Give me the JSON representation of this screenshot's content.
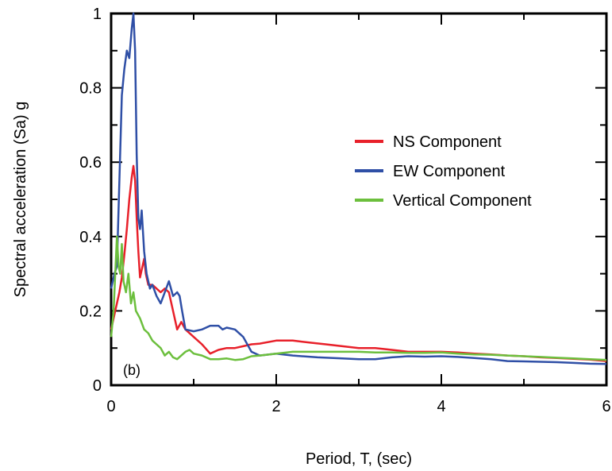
{
  "chart_data": {
    "type": "line",
    "title": "",
    "xlabel": "Period, T, (sec)",
    "ylabel": "Spectral acceleration (Sa) g",
    "xlim": [
      0,
      6
    ],
    "ylim": [
      0,
      1
    ],
    "x_ticks": [
      0,
      2,
      4,
      6
    ],
    "x_tick_labels": [
      "0",
      "2",
      "4",
      "6"
    ],
    "y_ticks": [
      0,
      0.2,
      0.4,
      0.6,
      0.8,
      1
    ],
    "y_tick_labels": [
      "0",
      "0.2",
      "0.4",
      "0.6",
      "0.8",
      "1"
    ],
    "grid": false,
    "legend_position": "right-middle",
    "annotation": "(b)",
    "series": [
      {
        "name": "NS Component",
        "color": "#e8202a",
        "points": [
          [
            0,
            0.15
          ],
          [
            0.05,
            0.2
          ],
          [
            0.08,
            0.23
          ],
          [
            0.1,
            0.25
          ],
          [
            0.13,
            0.29
          ],
          [
            0.16,
            0.35
          ],
          [
            0.19,
            0.42
          ],
          [
            0.22,
            0.5
          ],
          [
            0.25,
            0.56
          ],
          [
            0.27,
            0.59
          ],
          [
            0.29,
            0.55
          ],
          [
            0.31,
            0.45
          ],
          [
            0.33,
            0.36
          ],
          [
            0.35,
            0.29
          ],
          [
            0.37,
            0.31
          ],
          [
            0.4,
            0.34
          ],
          [
            0.42,
            0.3
          ],
          [
            0.45,
            0.27
          ],
          [
            0.5,
            0.27
          ],
          [
            0.55,
            0.26
          ],
          [
            0.6,
            0.25
          ],
          [
            0.65,
            0.26
          ],
          [
            0.7,
            0.25
          ],
          [
            0.75,
            0.2
          ],
          [
            0.8,
            0.15
          ],
          [
            0.85,
            0.17
          ],
          [
            0.9,
            0.15
          ],
          [
            1.0,
            0.13
          ],
          [
            1.1,
            0.11
          ],
          [
            1.2,
            0.085
          ],
          [
            1.3,
            0.095
          ],
          [
            1.4,
            0.1
          ],
          [
            1.5,
            0.1
          ],
          [
            1.6,
            0.105
          ],
          [
            1.7,
            0.11
          ],
          [
            1.8,
            0.112
          ],
          [
            2.0,
            0.12
          ],
          [
            2.2,
            0.12
          ],
          [
            2.4,
            0.115
          ],
          [
            2.6,
            0.11
          ],
          [
            2.8,
            0.105
          ],
          [
            3.0,
            0.1
          ],
          [
            3.2,
            0.1
          ],
          [
            3.4,
            0.095
          ],
          [
            3.6,
            0.09
          ],
          [
            3.8,
            0.09
          ],
          [
            4.0,
            0.09
          ],
          [
            4.2,
            0.088
          ],
          [
            4.4,
            0.085
          ],
          [
            4.6,
            0.083
          ],
          [
            4.8,
            0.08
          ],
          [
            5.0,
            0.078
          ],
          [
            5.2,
            0.075
          ],
          [
            5.4,
            0.073
          ],
          [
            5.6,
            0.071
          ],
          [
            5.8,
            0.069
          ],
          [
            6.0,
            0.065
          ]
        ]
      },
      {
        "name": "EW Component",
        "color": "#2f4fa6",
        "points": [
          [
            0,
            0.26
          ],
          [
            0.04,
            0.3
          ],
          [
            0.07,
            0.32
          ],
          [
            0.1,
            0.55
          ],
          [
            0.13,
            0.78
          ],
          [
            0.16,
            0.85
          ],
          [
            0.19,
            0.9
          ],
          [
            0.22,
            0.88
          ],
          [
            0.25,
            0.96
          ],
          [
            0.27,
            1.0
          ],
          [
            0.29,
            0.9
          ],
          [
            0.31,
            0.62
          ],
          [
            0.33,
            0.45
          ],
          [
            0.35,
            0.42
          ],
          [
            0.37,
            0.47
          ],
          [
            0.4,
            0.36
          ],
          [
            0.43,
            0.3
          ],
          [
            0.47,
            0.26
          ],
          [
            0.5,
            0.27
          ],
          [
            0.55,
            0.24
          ],
          [
            0.6,
            0.22
          ],
          [
            0.65,
            0.25
          ],
          [
            0.7,
            0.28
          ],
          [
            0.75,
            0.24
          ],
          [
            0.8,
            0.25
          ],
          [
            0.83,
            0.24
          ],
          [
            0.86,
            0.2
          ],
          [
            0.9,
            0.15
          ],
          [
            1.0,
            0.145
          ],
          [
            1.1,
            0.15
          ],
          [
            1.2,
            0.16
          ],
          [
            1.3,
            0.16
          ],
          [
            1.35,
            0.15
          ],
          [
            1.4,
            0.155
          ],
          [
            1.5,
            0.15
          ],
          [
            1.6,
            0.13
          ],
          [
            1.7,
            0.09
          ],
          [
            1.8,
            0.08
          ],
          [
            2.0,
            0.085
          ],
          [
            2.2,
            0.08
          ],
          [
            2.5,
            0.075
          ],
          [
            2.8,
            0.072
          ],
          [
            3.0,
            0.07
          ],
          [
            3.2,
            0.07
          ],
          [
            3.4,
            0.075
          ],
          [
            3.6,
            0.078
          ],
          [
            3.8,
            0.077
          ],
          [
            4.0,
            0.078
          ],
          [
            4.2,
            0.076
          ],
          [
            4.4,
            0.073
          ],
          [
            4.6,
            0.07
          ],
          [
            4.8,
            0.065
          ],
          [
            5.0,
            0.064
          ],
          [
            5.2,
            0.063
          ],
          [
            5.4,
            0.062
          ],
          [
            5.6,
            0.06
          ],
          [
            5.8,
            0.058
          ],
          [
            6.0,
            0.057
          ]
        ]
      },
      {
        "name": "Vertical Component",
        "color": "#6cbf3d",
        "points": [
          [
            0,
            0.13
          ],
          [
            0.03,
            0.2
          ],
          [
            0.05,
            0.3
          ],
          [
            0.07,
            0.4
          ],
          [
            0.09,
            0.32
          ],
          [
            0.11,
            0.3
          ],
          [
            0.13,
            0.38
          ],
          [
            0.15,
            0.28
          ],
          [
            0.18,
            0.25
          ],
          [
            0.21,
            0.3
          ],
          [
            0.24,
            0.22
          ],
          [
            0.27,
            0.25
          ],
          [
            0.3,
            0.2
          ],
          [
            0.35,
            0.18
          ],
          [
            0.4,
            0.15
          ],
          [
            0.45,
            0.14
          ],
          [
            0.5,
            0.12
          ],
          [
            0.55,
            0.11
          ],
          [
            0.6,
            0.1
          ],
          [
            0.65,
            0.08
          ],
          [
            0.7,
            0.09
          ],
          [
            0.75,
            0.075
          ],
          [
            0.8,
            0.07
          ],
          [
            0.85,
            0.08
          ],
          [
            0.9,
            0.09
          ],
          [
            0.95,
            0.095
          ],
          [
            1.0,
            0.085
          ],
          [
            1.1,
            0.08
          ],
          [
            1.2,
            0.07
          ],
          [
            1.3,
            0.07
          ],
          [
            1.4,
            0.072
          ],
          [
            1.5,
            0.068
          ],
          [
            1.6,
            0.07
          ],
          [
            1.7,
            0.078
          ],
          [
            1.8,
            0.08
          ],
          [
            2.0,
            0.085
          ],
          [
            2.2,
            0.09
          ],
          [
            2.4,
            0.09
          ],
          [
            2.6,
            0.09
          ],
          [
            2.8,
            0.09
          ],
          [
            3.0,
            0.09
          ],
          [
            3.2,
            0.088
          ],
          [
            3.4,
            0.088
          ],
          [
            3.6,
            0.087
          ],
          [
            3.8,
            0.087
          ],
          [
            4.0,
            0.088
          ],
          [
            4.2,
            0.085
          ],
          [
            4.4,
            0.083
          ],
          [
            4.6,
            0.082
          ],
          [
            4.8,
            0.08
          ],
          [
            5.0,
            0.078
          ],
          [
            5.2,
            0.076
          ],
          [
            5.4,
            0.074
          ],
          [
            5.6,
            0.072
          ],
          [
            5.8,
            0.07
          ],
          [
            6.0,
            0.068
          ]
        ]
      }
    ]
  }
}
